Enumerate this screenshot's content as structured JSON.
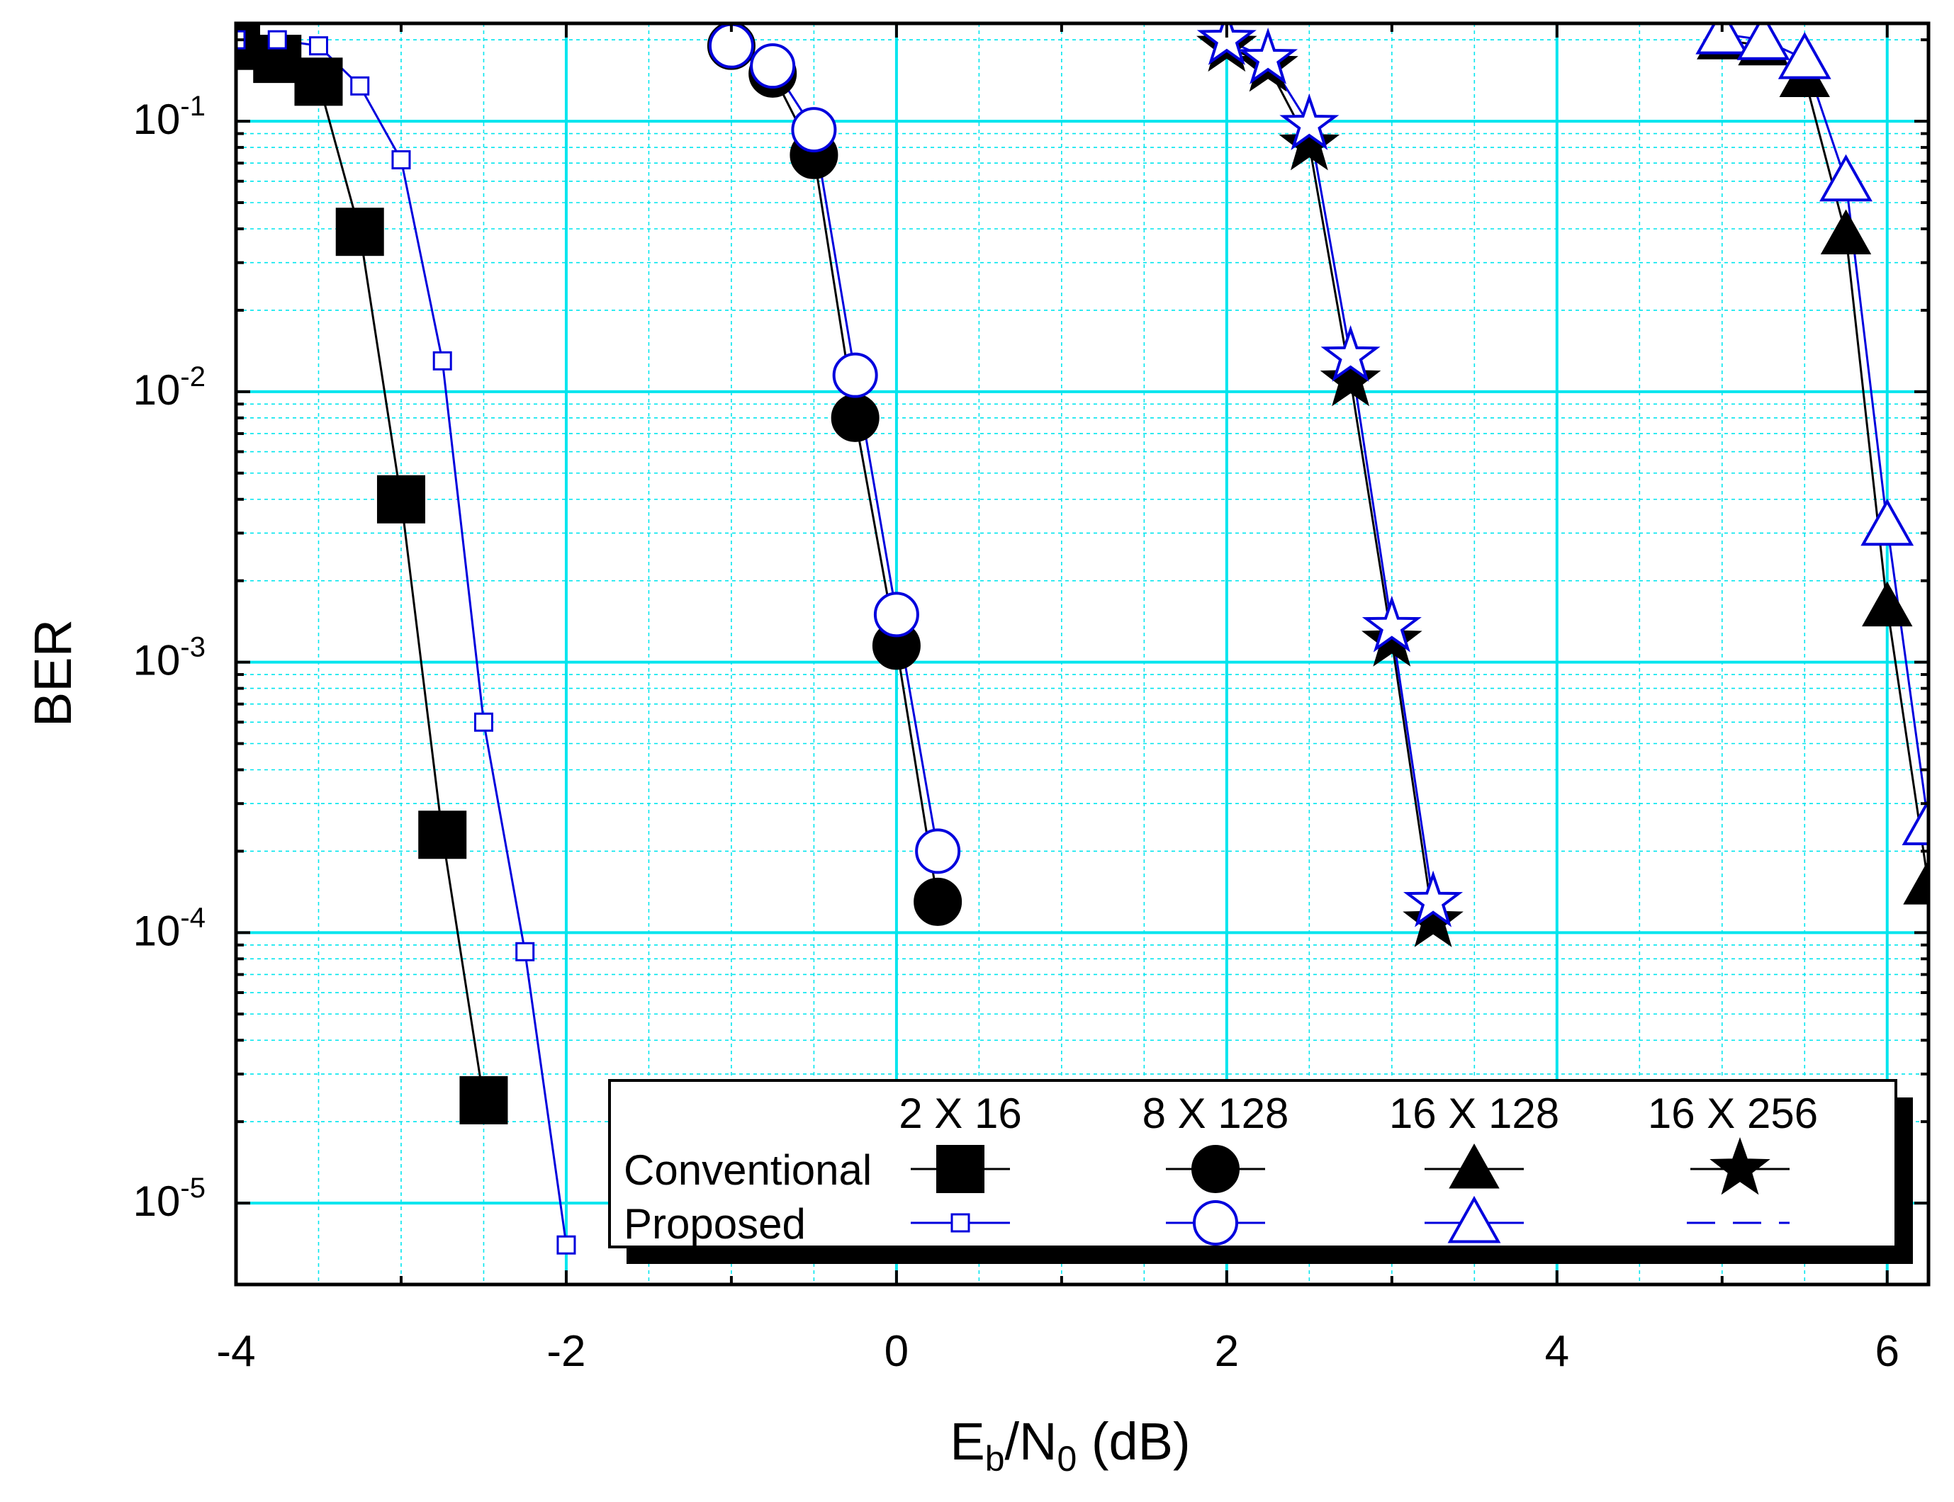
{
  "chart_data": {
    "type": "line",
    "xlabel": {
      "main": "E",
      "sub1": "b",
      "mid": "/N",
      "sub2": "0",
      "tail": " (dB)"
    },
    "ylabel": "BER",
    "xlim": [
      -4,
      6.25
    ],
    "ylim": [
      5e-06,
      0.23
    ],
    "y_log": true,
    "grid": true,
    "x_ticks": [
      {
        "value": -4,
        "label": "-4"
      },
      {
        "value": -2,
        "label": "-2"
      },
      {
        "value": 0,
        "label": "0"
      },
      {
        "value": 2,
        "label": "2"
      },
      {
        "value": 4,
        "label": "4"
      },
      {
        "value": 6,
        "label": "6"
      }
    ],
    "y_ticks": [
      {
        "value": 0.1,
        "base": "10",
        "exp": "-1"
      },
      {
        "value": 0.01,
        "base": "10",
        "exp": "-2"
      },
      {
        "value": 0.001,
        "base": "10",
        "exp": "-3"
      },
      {
        "value": 0.0001,
        "base": "10",
        "exp": "-4"
      },
      {
        "value": 1e-05,
        "base": "10",
        "exp": "-5"
      }
    ],
    "colors": {
      "grid": "#00e5ee",
      "conventional": "#000000",
      "proposed": "#0000dd"
    },
    "series": [
      {
        "name": "Conventional 2 X 16",
        "group": "2 X 16",
        "scheme": "Conventional",
        "marker": "square",
        "filled": true,
        "x": [
          -4,
          -3.75,
          -3.5,
          -3.25,
          -3,
          -2.75,
          -2.5
        ],
        "y": [
          0.19,
          0.17,
          0.14,
          0.039,
          0.004,
          0.00023,
          2.4e-05
        ]
      },
      {
        "name": "Proposed 2 X 16",
        "group": "2 X 16",
        "scheme": "Proposed",
        "marker": "square",
        "filled": false,
        "x": [
          -4,
          -3.75,
          -3.5,
          -3.25,
          -3,
          -2.75,
          -2.5,
          -2.25,
          -2
        ],
        "y": [
          0.2,
          0.2,
          0.19,
          0.135,
          0.072,
          0.013,
          0.0006,
          8.5e-05,
          7e-06
        ]
      },
      {
        "name": "Conventional 8 X 128",
        "group": "8 X 128",
        "scheme": "Conventional",
        "marker": "circle",
        "filled": true,
        "x": [
          -1,
          -0.75,
          -0.5,
          -0.25,
          0,
          0.25
        ],
        "y": [
          0.19,
          0.15,
          0.075,
          0.008,
          0.00115,
          0.00013
        ]
      },
      {
        "name": "Proposed 8 X 128",
        "group": "8 X 128",
        "scheme": "Proposed",
        "marker": "circle",
        "filled": false,
        "x": [
          -1,
          -0.75,
          -0.5,
          -0.25,
          0,
          0.25
        ],
        "y": [
          0.19,
          0.16,
          0.093,
          0.0115,
          0.0015,
          0.0002
        ]
      },
      {
        "name": "Conventional 16 X 128",
        "group": "16 X 128",
        "scheme": "Conventional",
        "marker": "triangle",
        "filled": true,
        "x": [
          5,
          5.25,
          5.5,
          5.75,
          6,
          6.25
        ],
        "y": [
          0.2,
          0.19,
          0.145,
          0.038,
          0.0016,
          0.00015
        ]
      },
      {
        "name": "Proposed 16 X 128",
        "group": "16 X 128",
        "scheme": "Proposed",
        "marker": "triangle",
        "filled": false,
        "x": [
          5,
          5.25,
          5.5,
          5.75,
          6,
          6.25
        ],
        "y": [
          0.21,
          0.2,
          0.17,
          0.06,
          0.0032,
          0.00025
        ]
      },
      {
        "name": "Conventional 16 X 256",
        "group": "16 X 256",
        "scheme": "Conventional",
        "marker": "star",
        "filled": true,
        "x": [
          2,
          2.25,
          2.5,
          2.75,
          3,
          3.25
        ],
        "y": [
          0.19,
          0.16,
          0.082,
          0.011,
          0.0012,
          0.00011
        ]
      },
      {
        "name": "Proposed 16 X 256",
        "group": "16 X 256",
        "scheme": "Proposed",
        "marker": "star",
        "filled": false,
        "x": [
          2,
          2.25,
          2.5,
          2.75,
          3,
          3.25
        ],
        "y": [
          0.2,
          0.17,
          0.097,
          0.0135,
          0.00135,
          0.00013
        ]
      }
    ],
    "legend": {
      "placement": "bottom-right",
      "columns": [
        "2 X 16",
        "8 X 128",
        "16 X 128",
        "16 X 256"
      ],
      "rows": [
        "Conventional",
        "Proposed"
      ],
      "markers": [
        "square",
        "circle",
        "triangle",
        "star"
      ],
      "proposed_last_style": "dashed"
    }
  }
}
